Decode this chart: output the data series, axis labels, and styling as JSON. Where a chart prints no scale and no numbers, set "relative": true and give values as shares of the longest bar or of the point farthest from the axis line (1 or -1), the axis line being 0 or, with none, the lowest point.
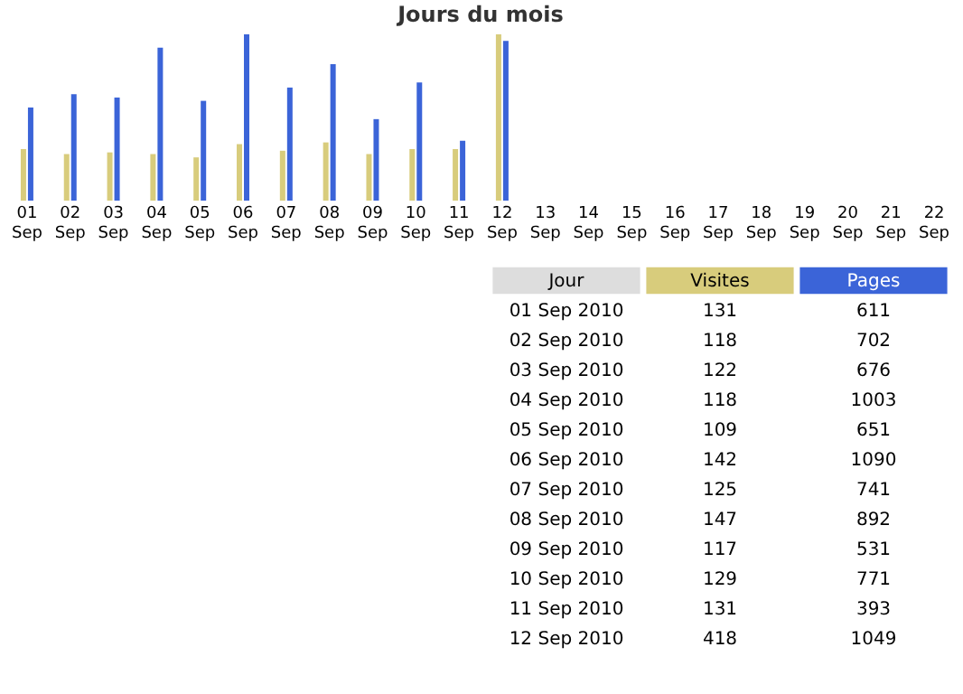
{
  "chart_data": [
    {
      "type": "bar",
      "title": "Jours du mois",
      "categories": [
        "01 Sep",
        "02 Sep",
        "03 Sep",
        "04 Sep",
        "05 Sep",
        "06 Sep",
        "07 Sep",
        "08 Sep",
        "09 Sep",
        "10 Sep",
        "11 Sep",
        "12 Sep",
        "13 Sep",
        "14 Sep",
        "15 Sep",
        "16 Sep",
        "17 Sep",
        "18 Sep",
        "19 Sep",
        "20 Sep",
        "21 Sep",
        "22 Sep"
      ],
      "series": [
        {
          "color": "#d8cc7c",
          "values": [
            0.31,
            0.28,
            0.29,
            0.28,
            0.26,
            0.34,
            0.3,
            0.35,
            0.28,
            0.31,
            0.31,
            1,
            null,
            null,
            null,
            null,
            null,
            null,
            null,
            null,
            null,
            null
          ]
        },
        {
          "color": "#3b64d8",
          "values": [
            0.56,
            0.64,
            0.62,
            0.92,
            0.6,
            1,
            0.68,
            0.82,
            0.49,
            0.71,
            0.36,
            0.96,
            null,
            null,
            null,
            null,
            null,
            null,
            null,
            null,
            null,
            null
          ]
        }
      ],
      "relative": true
    },
    {
      "type": "other",
      "xlabel": "Jour",
      "categories": [
        "01 Sep 2010",
        "02 Sep 2010",
        "03 Sep 2010",
        "04 Sep 2010",
        "05 Sep 2010",
        "06 Sep 2010",
        "07 Sep 2010",
        "08 Sep 2010",
        "09 Sep 2010",
        "10 Sep 2010",
        "11 Sep 2010",
        "12 Sep 2010"
      ],
      "series": [
        {
          "name": "Visites",
          "values": [
            131,
            118,
            122,
            118,
            109,
            142,
            125,
            147,
            117,
            129,
            131,
            418
          ]
        },
        {
          "name": "Pages",
          "values": [
            611,
            702,
            676,
            1003,
            651,
            1090,
            741,
            892,
            531,
            771,
            393,
            1049
          ]
        }
      ],
      "data_labels": true
    }
  ]
}
